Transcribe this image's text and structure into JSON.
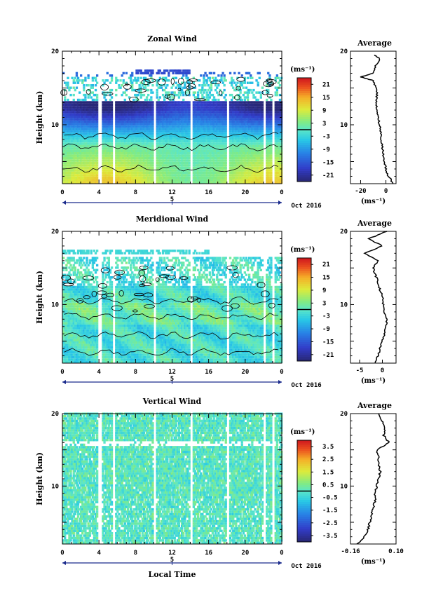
{
  "chart_data": [
    {
      "type": "heatmap",
      "title": "Zonal Wind",
      "ylabel": "Height (km)",
      "ylim": [
        2,
        20
      ],
      "yticks": [
        "20",
        "10"
      ],
      "xticks": [
        "0",
        "4",
        "8",
        "12",
        "16",
        "20",
        "0"
      ],
      "date_label": "5",
      "month_label": "Oct 2016",
      "colorbar": {
        "unit": "(ms⁻¹)",
        "ticks": [
          "21",
          "15",
          "9",
          "3",
          "-3",
          "-9",
          "-15",
          "-21"
        ],
        "range": [
          -24,
          24
        ]
      },
      "profile": {
        "title": "Average",
        "yticks": [
          "20",
          "10"
        ],
        "xticks": [
          "-20",
          "0"
        ],
        "xlim": [
          -28,
          8
        ],
        "xlabel": "(ms⁻¹)",
        "heights": [
          2,
          3,
          4,
          5,
          6,
          7,
          8,
          9,
          10,
          11,
          12,
          13,
          14,
          15,
          16,
          16.5,
          17,
          18,
          19,
          19.5
        ],
        "values": [
          6,
          2,
          0,
          -1,
          -2,
          -3,
          -4,
          -4,
          -5,
          -6,
          -7,
          -8,
          -7,
          -8,
          -10,
          -20,
          -10,
          -8,
          -5,
          -9
        ]
      }
    },
    {
      "type": "heatmap",
      "title": "Meridional Wind",
      "ylabel": "Height (km)",
      "ylim": [
        2,
        20
      ],
      "yticks": [
        "20",
        "10"
      ],
      "xticks": [
        "0",
        "4",
        "8",
        "12",
        "16",
        "20",
        "0"
      ],
      "date_label": "5",
      "month_label": "Oct 2016",
      "colorbar": {
        "unit": "(ms⁻¹)",
        "ticks": [
          "21",
          "15",
          "9",
          "3",
          "-3",
          "-9",
          "-15",
          "-21"
        ],
        "range": [
          -24,
          24
        ]
      },
      "profile": {
        "title": "Average",
        "yticks": [
          "20",
          "10"
        ],
        "xticks": [
          "-5",
          "0"
        ],
        "xlim": [
          -7,
          3
        ],
        "xlabel": "(ms⁻¹)",
        "heights": [
          2,
          3,
          4,
          5,
          6,
          7,
          8,
          9,
          10,
          11,
          12,
          13,
          14,
          15,
          16,
          17,
          18,
          19,
          20
        ],
        "values": [
          -1.5,
          -1,
          -0.5,
          0,
          0.5,
          0.8,
          1,
          0.5,
          0.2,
          0,
          -0.5,
          -1,
          -1.5,
          -2,
          -1,
          -4,
          0,
          -3,
          1
        ]
      }
    },
    {
      "type": "heatmap",
      "title": "Vertical Wind",
      "ylabel": "Height (km)",
      "ylim": [
        2,
        20
      ],
      "yticks": [
        "20",
        "10"
      ],
      "xticks": [
        "0",
        "4",
        "8",
        "12",
        "16",
        "20",
        "0"
      ],
      "date_label": "5",
      "month_label": "Oct 2016",
      "xlabel": "Local Time",
      "colorbar": {
        "unit": "(ms⁻¹)",
        "ticks": [
          "3.5",
          "2.5",
          "1.5",
          "0.5",
          "-0.5",
          "-1.5",
          "-2.5",
          "-3.5"
        ],
        "range": [
          -4,
          4
        ]
      },
      "profile": {
        "title": "Average",
        "yticks": [
          "20",
          "10"
        ],
        "xticks": [
          "-0.16",
          "0.10"
        ],
        "xlim": [
          -0.16,
          0.1
        ],
        "xlabel": "(ms⁻¹)",
        "heights": [
          2,
          3,
          4,
          5,
          6,
          7,
          8,
          9,
          10,
          11,
          12,
          13,
          14,
          15,
          16,
          17,
          18,
          19,
          20
        ],
        "values": [
          -0.12,
          -0.08,
          -0.06,
          -0.05,
          -0.04,
          -0.03,
          -0.02,
          -0.02,
          -0.01,
          0.0,
          0.01,
          0.0,
          0.0,
          -0.01,
          0.06,
          0.03,
          0.04,
          0.02,
          0.0
        ]
      }
    }
  ]
}
